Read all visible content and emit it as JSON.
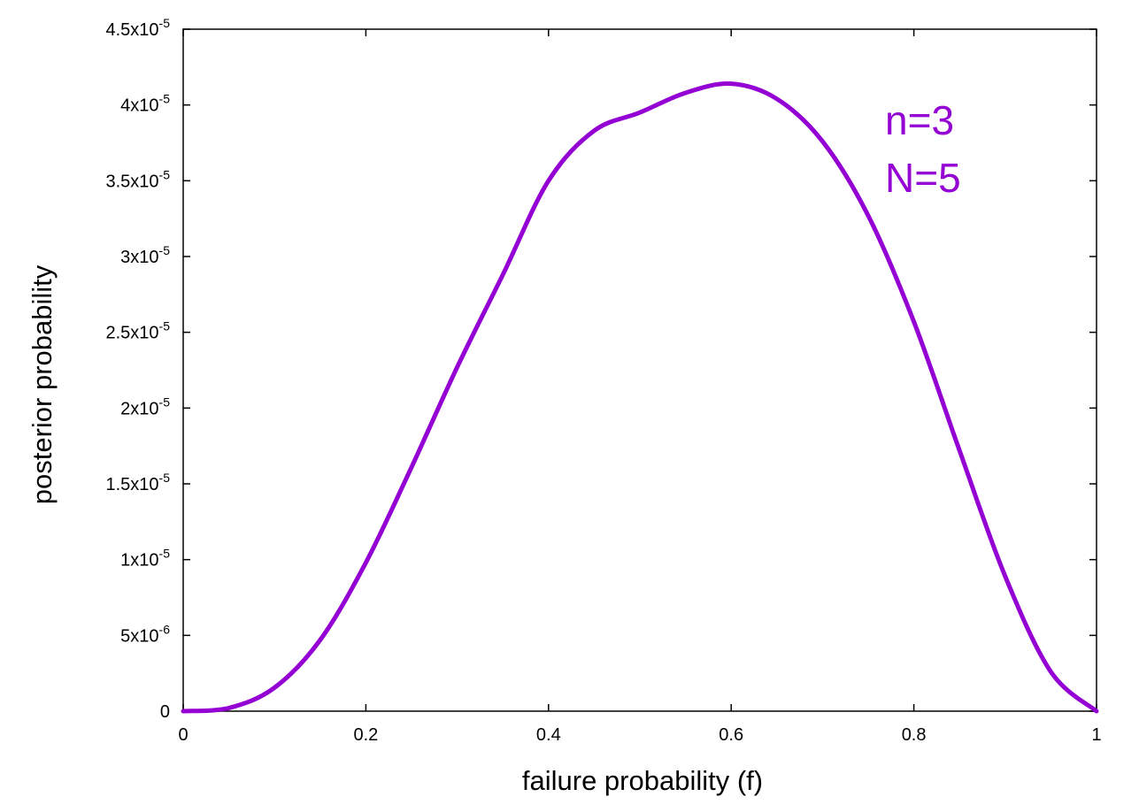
{
  "chart_data": {
    "type": "line",
    "xlabel": "failure probability (f)",
    "ylabel": "posterior probability",
    "xlim": [
      0,
      1
    ],
    "ylim": [
      0,
      4.5e-05
    ],
    "grid": false,
    "legend": "none",
    "x_ticks": [
      {
        "value": 0,
        "label": "0"
      },
      {
        "value": 0.2,
        "label": "0.2"
      },
      {
        "value": 0.4,
        "label": "0.4"
      },
      {
        "value": 0.6,
        "label": "0.6"
      },
      {
        "value": 0.8,
        "label": "0.8"
      },
      {
        "value": 1,
        "label": "1"
      }
    ],
    "y_ticks": [
      {
        "value": 0,
        "mantissa": "0",
        "exponent": ""
      },
      {
        "value": 5e-06,
        "mantissa": "5x10",
        "exponent": "-6"
      },
      {
        "value": 1e-05,
        "mantissa": "1x10",
        "exponent": "-5"
      },
      {
        "value": 1.5e-05,
        "mantissa": "1.5x10",
        "exponent": "-5"
      },
      {
        "value": 2e-05,
        "mantissa": "2x10",
        "exponent": "-5"
      },
      {
        "value": 2.5e-05,
        "mantissa": "2.5x10",
        "exponent": "-5"
      },
      {
        "value": 3e-05,
        "mantissa": "3x10",
        "exponent": "-5"
      },
      {
        "value": 3.5e-05,
        "mantissa": "3.5x10",
        "exponent": "-5"
      },
      {
        "value": 4e-05,
        "mantissa": "4x10",
        "exponent": "-5"
      },
      {
        "value": 4.5e-05,
        "mantissa": "4.5x10",
        "exponent": "-5"
      }
    ],
    "series": [
      {
        "color": "#9400D3",
        "x": [
          0,
          0.05,
          0.1,
          0.15,
          0.2,
          0.25,
          0.3,
          0.35,
          0.4,
          0.45,
          0.5,
          0.55,
          0.6,
          0.65,
          0.7,
          0.75,
          0.8,
          0.85,
          0.9,
          0.95,
          1
        ],
        "y": [
          0,
          2.1e-07,
          1.55e-06,
          4.7e-06,
          9.8e-06,
          1.61e-05,
          2.27e-05,
          2.88e-05,
          3.5e-05,
          3.83e-05,
          3.95e-05,
          4.08e-05,
          4.14e-05,
          4.04e-05,
          3.76e-05,
          3.27e-05,
          2.57e-05,
          1.72e-05,
          8.9e-06,
          2.6e-06,
          0
        ]
      }
    ],
    "annotations": [
      {
        "text": "n=3",
        "color": "#9400D3"
      },
      {
        "text": "N=5",
        "color": "#9400D3"
      }
    ]
  }
}
